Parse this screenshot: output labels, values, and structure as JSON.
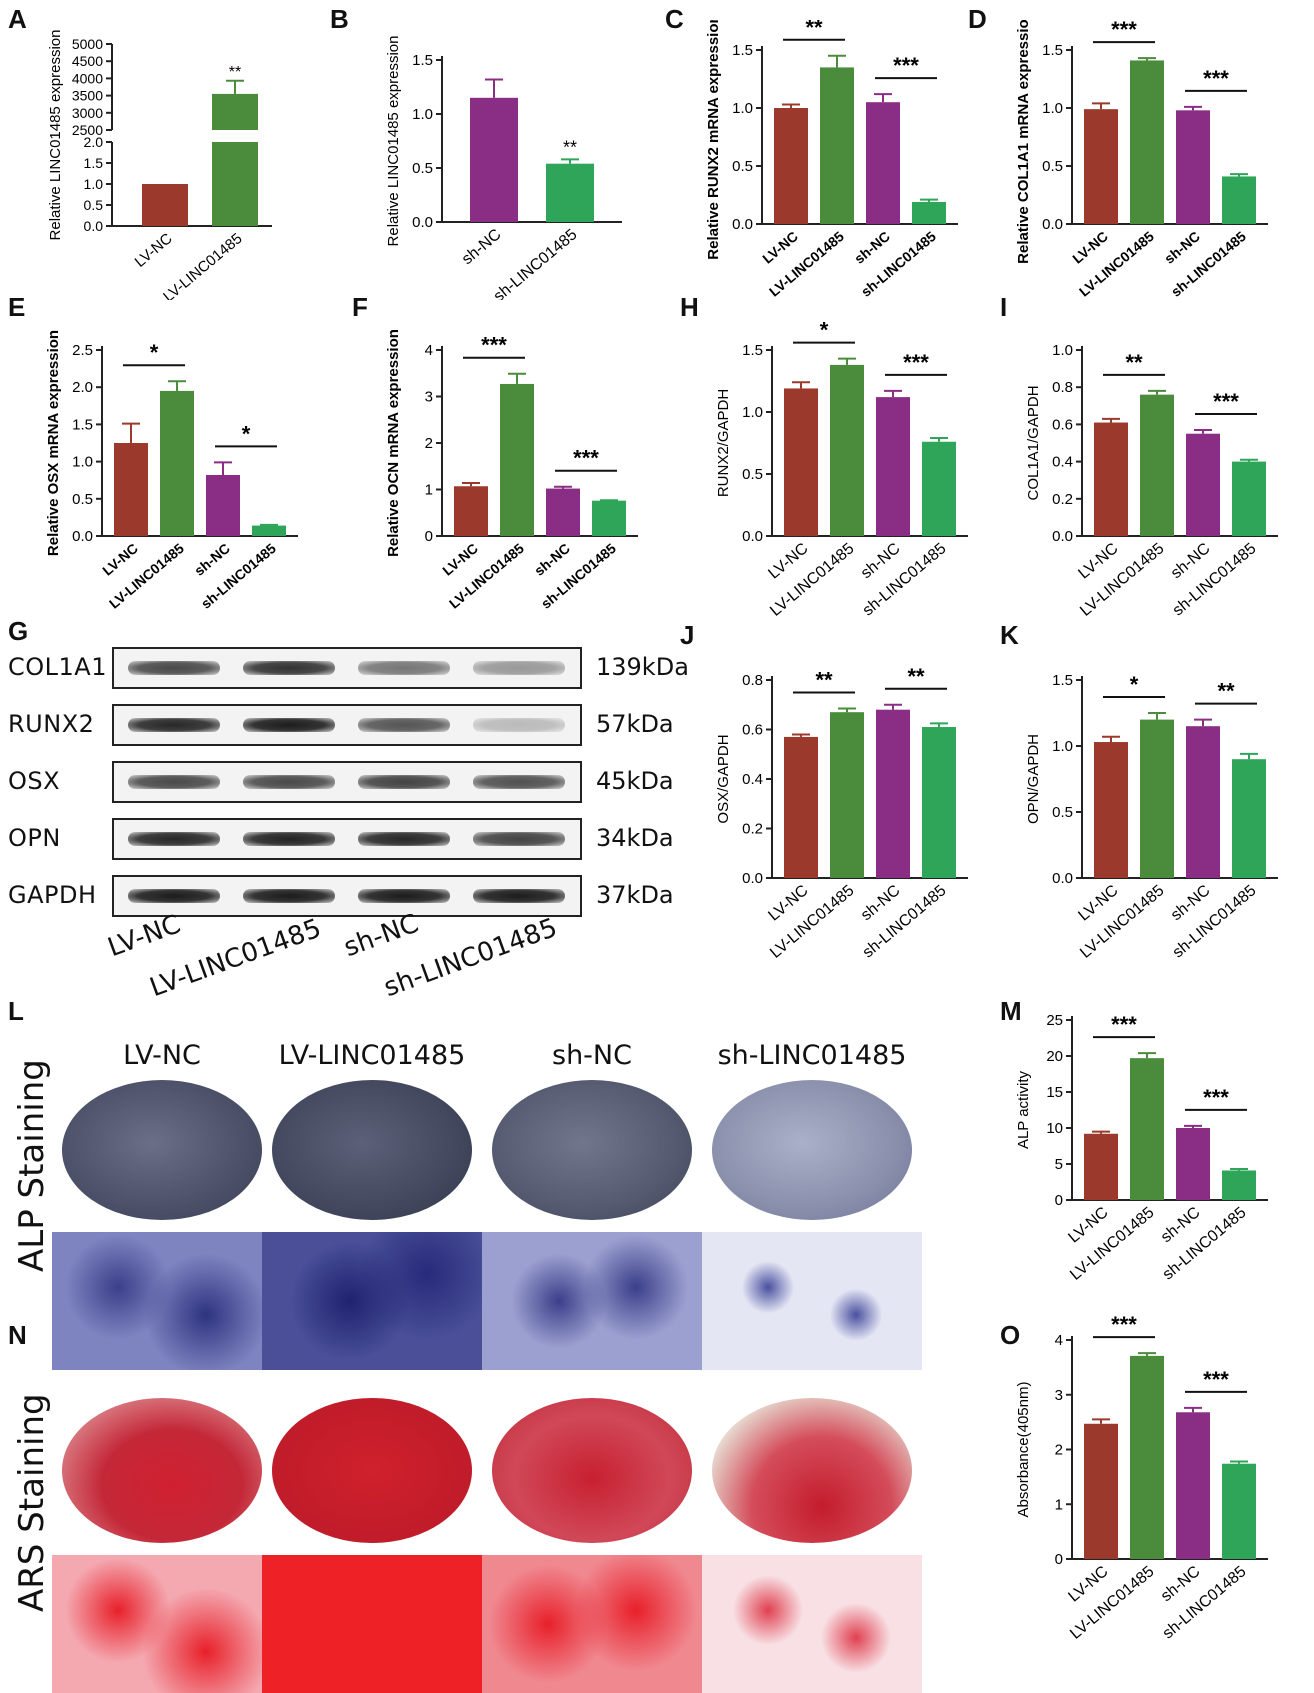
{
  "colors": {
    "lv_nc": "#9b3a2c",
    "lv_linc": "#4a8c3c",
    "sh_nc": "#8a2d84",
    "sh_linc": "#2fa55a"
  },
  "panels": {
    "A": "A",
    "B": "B",
    "C": "C",
    "D": "D",
    "E": "E",
    "F": "F",
    "G": "G",
    "H": "H",
    "I": "I",
    "J": "J",
    "K": "K",
    "L": "L",
    "M": "M",
    "N": "N",
    "O": "O"
  },
  "chart_data": [
    {
      "id": "A",
      "type": "bar",
      "categories": [
        "LV-NC",
        "LV-LINC01485"
      ],
      "values": [
        1.0,
        3550
      ],
      "errors": [
        0.02,
        380
      ],
      "ylabel": "Relative LINC01485 expression",
      "broken_axis": true,
      "lower_ticks": [
        "0.0",
        "0.5",
        "1.0",
        "1.5",
        "2.0"
      ],
      "upper_ticks": [
        "2500",
        "3000",
        "3500",
        "4000",
        "4500",
        "5000"
      ],
      "sig": [
        {
          "bar": 1,
          "label": "**"
        }
      ]
    },
    {
      "id": "B",
      "type": "bar",
      "categories": [
        "sh-NC",
        "sh-LINC01485"
      ],
      "values": [
        1.15,
        0.54
      ],
      "errors": [
        0.17,
        0.04
      ],
      "ylabel": "Relative LINC01485 expression",
      "ylim": [
        0,
        1.5
      ],
      "ticks": [
        "0.0",
        "0.5",
        "1.0",
        "1.5"
      ],
      "sig": [
        {
          "bar": 1,
          "label": "**"
        }
      ]
    },
    {
      "id": "C",
      "type": "bar",
      "categories": [
        "LV-NC",
        "LV-LINC01485",
        "sh-NC",
        "sh-LINC01485"
      ],
      "values": [
        1.0,
        1.35,
        1.05,
        0.19
      ],
      "errors": [
        0.03,
        0.1,
        0.07,
        0.02
      ],
      "ylabel": "Relative RUNX2 mRNA expression",
      "ylim": [
        0,
        1.5
      ],
      "ticks": [
        "0.0",
        "0.5",
        "1.0",
        "1.5"
      ],
      "bold_labels": true,
      "pairs": [
        {
          "a": 0,
          "b": 1,
          "label": "**"
        },
        {
          "a": 2,
          "b": 3,
          "label": "***"
        }
      ]
    },
    {
      "id": "D",
      "type": "bar",
      "categories": [
        "LV-NC",
        "LV-LINC01485",
        "sh-NC",
        "sh-LINC01485"
      ],
      "values": [
        0.99,
        1.41,
        0.98,
        0.41
      ],
      "errors": [
        0.05,
        0.02,
        0.03,
        0.02
      ],
      "ylabel": "Relative COL1A1 mRNA expression",
      "ylim": [
        0,
        1.5
      ],
      "ticks": [
        "0.0",
        "0.5",
        "1.0",
        "1.5"
      ],
      "bold_labels": true,
      "pairs": [
        {
          "a": 0,
          "b": 1,
          "label": "***"
        },
        {
          "a": 2,
          "b": 3,
          "label": "***"
        }
      ]
    },
    {
      "id": "E",
      "type": "bar",
      "categories": [
        "LV-NC",
        "LV-LINC01485",
        "sh-NC",
        "sh-LINC01485"
      ],
      "values": [
        1.25,
        1.95,
        0.82,
        0.14
      ],
      "errors": [
        0.26,
        0.13,
        0.17,
        0.01
      ],
      "ylabel": "Relative OSX mRNA expression",
      "ylim": [
        0,
        2.5
      ],
      "ticks": [
        "0.0",
        "0.5",
        "1.0",
        "1.5",
        "2.0",
        "2.5"
      ],
      "bold_labels": true,
      "pairs": [
        {
          "a": 0,
          "b": 1,
          "label": "*"
        },
        {
          "a": 2,
          "b": 3,
          "label": "*"
        }
      ]
    },
    {
      "id": "F",
      "type": "bar",
      "categories": [
        "LV-NC",
        "LV-LINC01485",
        "sh-NC",
        "sh-LINC01485"
      ],
      "values": [
        1.07,
        3.27,
        1.02,
        0.76
      ],
      "errors": [
        0.07,
        0.22,
        0.04,
        0.01
      ],
      "ylabel": "Relative OCN mRNA expression",
      "ylim": [
        0,
        4
      ],
      "ticks": [
        "0",
        "1",
        "2",
        "3",
        "4"
      ],
      "bold_labels": true,
      "pairs": [
        {
          "a": 0,
          "b": 1,
          "label": "***"
        },
        {
          "a": 2,
          "b": 3,
          "label": "***"
        }
      ]
    },
    {
      "id": "H",
      "type": "bar",
      "categories": [
        "LV-NC",
        "LV-LINC01485",
        "sh-NC",
        "sh-LINC01485"
      ],
      "values": [
        1.19,
        1.38,
        1.12,
        0.76
      ],
      "errors": [
        0.05,
        0.05,
        0.05,
        0.03
      ],
      "ylabel": "RUNX2/GAPDH",
      "ylim": [
        0,
        1.5
      ],
      "ticks": [
        "0.0",
        "0.5",
        "1.0",
        "1.5"
      ],
      "pairs": [
        {
          "a": 0,
          "b": 1,
          "label": "*"
        },
        {
          "a": 2,
          "b": 3,
          "label": "***"
        }
      ]
    },
    {
      "id": "I",
      "type": "bar",
      "categories": [
        "LV-NC",
        "LV-LINC01485",
        "sh-NC",
        "sh-LINC01485"
      ],
      "values": [
        0.61,
        0.76,
        0.55,
        0.4
      ],
      "errors": [
        0.02,
        0.02,
        0.02,
        0.01
      ],
      "ylabel": "COL1A1/GAPDH",
      "ylim": [
        0,
        1.0
      ],
      "ticks": [
        "0.0",
        "0.2",
        "0.4",
        "0.6",
        "0.8",
        "1.0"
      ],
      "pairs": [
        {
          "a": 0,
          "b": 1,
          "label": "**"
        },
        {
          "a": 2,
          "b": 3,
          "label": "***"
        }
      ]
    },
    {
      "id": "J",
      "type": "bar",
      "categories": [
        "LV-NC",
        "LV-LINC01485",
        "sh-NC",
        "sh-LINC01485"
      ],
      "values": [
        0.57,
        0.67,
        0.68,
        0.61
      ],
      "errors": [
        0.01,
        0.015,
        0.02,
        0.015
      ],
      "ylabel": "OSX/GAPDH",
      "ylim": [
        0,
        0.8
      ],
      "ticks": [
        "0.0",
        "0.2",
        "0.4",
        "0.6",
        "0.8"
      ],
      "pairs": [
        {
          "a": 0,
          "b": 1,
          "label": "**"
        },
        {
          "a": 2,
          "b": 3,
          "label": "**"
        }
      ]
    },
    {
      "id": "K",
      "type": "bar",
      "categories": [
        "LV-NC",
        "LV-LINC01485",
        "sh-NC",
        "sh-LINC01485"
      ],
      "values": [
        1.03,
        1.2,
        1.15,
        0.9
      ],
      "errors": [
        0.04,
        0.05,
        0.05,
        0.04
      ],
      "ylabel": "OPN/GAPDH",
      "ylim": [
        0,
        1.5
      ],
      "ticks": [
        "0.0",
        "0.5",
        "1.0",
        "1.5"
      ],
      "pairs": [
        {
          "a": 0,
          "b": 1,
          "label": "*"
        },
        {
          "a": 2,
          "b": 3,
          "label": "**"
        }
      ]
    },
    {
      "id": "M",
      "type": "bar",
      "categories": [
        "LV-NC",
        "LV-LINC01485",
        "sh-NC",
        "sh-LINC01485"
      ],
      "values": [
        9.2,
        19.7,
        10.0,
        4.1
      ],
      "errors": [
        0.3,
        0.7,
        0.3,
        0.2
      ],
      "ylabel": "ALP activity",
      "ylim": [
        0,
        25
      ],
      "ticks": [
        "0",
        "5",
        "10",
        "15",
        "20",
        "25"
      ],
      "pairs": [
        {
          "a": 0,
          "b": 1,
          "label": "***"
        },
        {
          "a": 2,
          "b": 3,
          "label": "***"
        }
      ]
    },
    {
      "id": "O",
      "type": "bar",
      "categories": [
        "LV-NC",
        "LV-LINC01485",
        "sh-NC",
        "sh-LINC01485"
      ],
      "values": [
        2.47,
        3.71,
        2.68,
        1.74
      ],
      "errors": [
        0.08,
        0.05,
        0.08,
        0.04
      ],
      "ylabel": "Absorbance(405nm)",
      "ylim": [
        0,
        4
      ],
      "ticks": [
        "0",
        "1",
        "2",
        "3",
        "4"
      ],
      "pairs": [
        {
          "a": 0,
          "b": 1,
          "label": "***"
        },
        {
          "a": 2,
          "b": 3,
          "label": "***"
        }
      ]
    }
  ],
  "western_blot": {
    "proteins": [
      {
        "name": "COL1A1",
        "size": "139kDa",
        "intensity": [
          0.75,
          0.85,
          0.55,
          0.4
        ]
      },
      {
        "name": "RUNX2",
        "size": "57kDa",
        "intensity": [
          0.9,
          0.95,
          0.7,
          0.25
        ]
      },
      {
        "name": "OSX",
        "size": "45kDa",
        "intensity": [
          0.75,
          0.75,
          0.78,
          0.72
        ]
      },
      {
        "name": "OPN",
        "size": "34kDa",
        "intensity": [
          0.9,
          0.92,
          0.9,
          0.78
        ]
      },
      {
        "name": "GAPDH",
        "size": "37kDa",
        "intensity": [
          0.95,
          0.95,
          0.95,
          0.95
        ]
      }
    ],
    "lanes": [
      "LV-NC",
      "LV-LINC01485",
      "sh-NC",
      "sh-LINC01485"
    ]
  },
  "staining": {
    "columns": [
      "LV-NC",
      "LV-LINC01485",
      "sh-NC",
      "sh-LINC01485"
    ],
    "alp_label": "ALP Staining",
    "ars_label": "ARS Staining"
  }
}
